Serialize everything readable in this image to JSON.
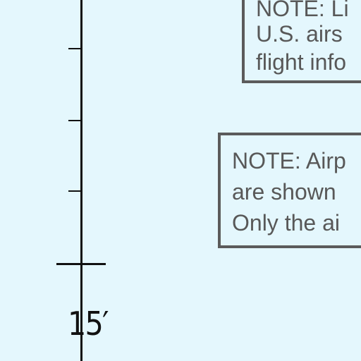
{
  "map": {
    "graticule": {
      "label": "15′"
    },
    "notes": [
      {
        "lines": [
          "NOTE: Li",
          "U.S. airs",
          "flight info"
        ]
      },
      {
        "lines": [
          "NOTE: Airp",
          "are shown",
          "Only the ai"
        ]
      }
    ]
  },
  "colors": {
    "background": "#e4f7fd",
    "line": "#111111",
    "note_border": "#5b5b5b",
    "note_text": "#585858"
  }
}
